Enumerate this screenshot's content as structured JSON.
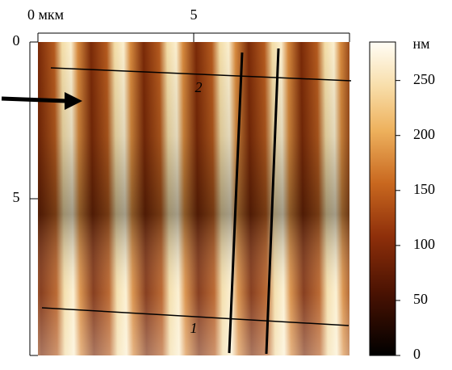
{
  "chart_data": {
    "type": "image",
    "xlim": [
      0,
      10
    ],
    "xticks": [
      {
        "value": 0,
        "label": "0 мкм"
      },
      5
    ],
    "ylim": [
      0,
      10
    ],
    "yticks": [
      0,
      5
    ],
    "colorbar": {
      "label": "нм",
      "lim": [
        0,
        285
      ],
      "ticks": [
        0,
        50,
        100,
        150,
        200,
        250
      ]
    },
    "annotations": [
      "2",
      "1"
    ]
  }
}
